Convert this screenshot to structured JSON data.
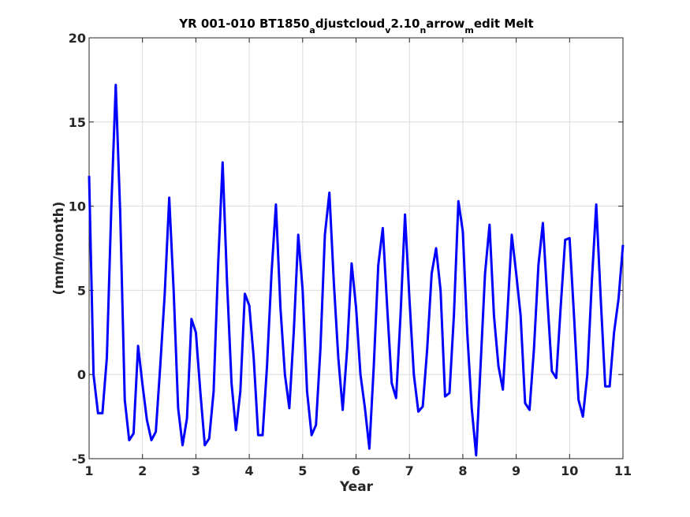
{
  "chart_data": {
    "type": "line",
    "title": {
      "parts": [
        {
          "text": "YR 001-010 BT1850",
          "sub": false
        },
        {
          "text": "a",
          "sub": true
        },
        {
          "text": "djustcloud",
          "sub": false
        },
        {
          "text": "v",
          "sub": true
        },
        {
          "text": "2.10",
          "sub": false
        },
        {
          "text": "n",
          "sub": true
        },
        {
          "text": "arrow",
          "sub": false
        },
        {
          "text": "m",
          "sub": true
        },
        {
          "text": "edit Melt",
          "sub": false
        }
      ]
    },
    "xlabel": "Year",
    "ylabel": "(mm/month)",
    "xlim": [
      1,
      11
    ],
    "ylim": [
      -5,
      20
    ],
    "xticks": [
      1,
      2,
      3,
      4,
      5,
      6,
      7,
      8,
      9,
      10,
      11
    ],
    "yticks": [
      -5,
      0,
      5,
      10,
      15,
      20
    ],
    "grid": true,
    "series_color": "#0000ff",
    "series": [
      {
        "x": [
          1.0,
          1.083,
          1.167,
          1.25,
          1.333,
          1.417,
          1.5,
          1.583,
          1.667,
          1.75,
          1.833,
          1.917,
          2.0,
          2.083,
          2.167,
          2.25,
          2.333,
          2.417,
          2.5,
          2.583,
          2.667,
          2.75,
          2.833,
          2.917,
          3.0,
          3.083,
          3.167,
          3.25,
          3.333,
          3.417,
          3.5,
          3.583,
          3.667,
          3.75,
          3.833,
          3.917,
          4.0,
          4.083,
          4.167,
          4.25,
          4.333,
          4.417,
          4.5,
          4.583,
          4.667,
          4.75,
          4.833,
          4.917,
          5.0,
          5.083,
          5.167,
          5.25,
          5.333,
          5.417,
          5.5,
          5.583,
          5.667,
          5.75,
          5.833,
          5.917,
          6.0,
          6.083,
          6.167,
          6.25,
          6.333,
          6.417,
          6.5,
          6.583,
          6.667,
          6.75,
          6.833,
          6.917,
          7.0,
          7.083,
          7.167,
          7.25,
          7.333,
          7.417,
          7.5,
          7.583,
          7.667,
          7.75,
          7.833,
          7.917,
          8.0,
          8.083,
          8.167,
          8.25,
          8.333,
          8.417,
          8.5,
          8.583,
          8.667,
          8.75,
          8.833,
          8.917,
          9.0,
          9.083,
          9.167,
          9.25,
          9.333,
          9.417,
          9.5,
          9.583,
          9.667,
          9.75,
          9.833,
          9.917,
          10.0,
          10.083,
          10.167,
          10.25,
          10.333,
          10.417,
          10.5,
          10.583,
          10.667,
          10.75,
          10.833,
          10.917,
          11.0
        ],
        "y": [
          11.8,
          0.0,
          -2.3,
          -2.3,
          1.0,
          10.0,
          17.2,
          9.5,
          -1.5,
          -3.9,
          -3.5,
          1.7,
          -0.6,
          -2.7,
          -3.9,
          -3.4,
          0.5,
          4.8,
          10.5,
          5.0,
          -2.0,
          -4.2,
          -2.6,
          3.3,
          2.5,
          -1.0,
          -4.2,
          -3.8,
          -1.0,
          6.5,
          12.6,
          5.5,
          -0.5,
          -3.3,
          -1.0,
          4.8,
          4.1,
          1.0,
          -3.6,
          -3.6,
          0.5,
          6.0,
          10.1,
          4.0,
          0.0,
          -2.0,
          2.5,
          8.3,
          5.0,
          -1.0,
          -3.6,
          -3.0,
          1.5,
          8.3,
          10.8,
          5.5,
          1.0,
          -2.1,
          1.5,
          6.6,
          4.0,
          0.0,
          -2.0,
          -4.4,
          0.5,
          6.5,
          8.7,
          4.0,
          -0.5,
          -1.4,
          3.5,
          9.5,
          4.5,
          0.0,
          -2.2,
          -1.9,
          1.5,
          6.0,
          7.5,
          5.0,
          -1.3,
          -1.1,
          3.5,
          10.3,
          8.5,
          2.5,
          -2.0,
          -4.8,
          0.5,
          6.0,
          8.9,
          3.5,
          0.5,
          -0.9,
          3.5,
          8.3,
          6.0,
          3.5,
          -1.7,
          -2.1,
          1.5,
          6.5,
          9.0,
          4.5,
          0.2,
          -0.2,
          4.0,
          8.0,
          8.1,
          3.5,
          -1.5,
          -2.5,
          0.0,
          5.5,
          10.1,
          4.5,
          -0.7,
          -0.7,
          2.5,
          4.5,
          7.7
        ]
      }
    ]
  }
}
